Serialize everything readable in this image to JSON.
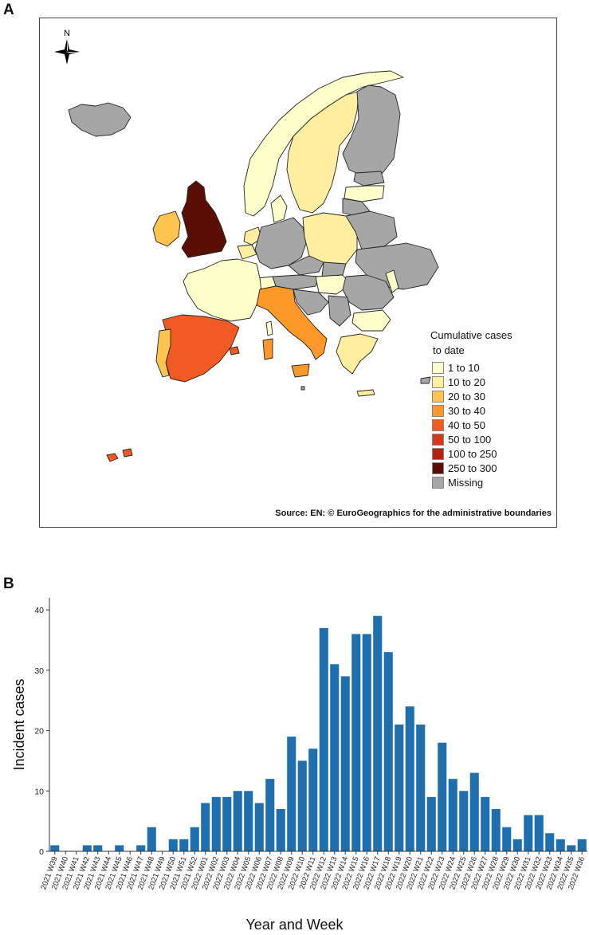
{
  "panel_a_label": "A",
  "panel_b_label": "B",
  "map": {
    "north_label": "N",
    "legend_title_1": "Cumulative cases",
    "legend_title_2": "to date",
    "legend": [
      {
        "label": "1 to 10",
        "color": "#FFFFCC"
      },
      {
        "label": "10 to 20",
        "color": "#FFEDA0"
      },
      {
        "label": "20 to 30",
        "color": "#FEC44F"
      },
      {
        "label": "30 to 40",
        "color": "#FE9929"
      },
      {
        "label": "40 to 50",
        "color": "#F15A22"
      },
      {
        "label": "50 to 100",
        "color": "#E0301E"
      },
      {
        "label": "100 to 250",
        "color": "#B2220E"
      },
      {
        "label": "250 to 300",
        "color": "#5A0F05"
      },
      {
        "label": "Missing",
        "color": "#A6A6A6"
      }
    ],
    "source": "Source: EN: © EuroGeographics for the administrative boundaries"
  },
  "chart_data": {
    "type": "bar",
    "title": "",
    "xlabel": "Year and Week",
    "ylabel": "Incident cases",
    "ylim": [
      0,
      42
    ],
    "yticks": [
      0,
      10,
      20,
      30,
      40
    ],
    "bar_color": "#1F6FAE",
    "categories": [
      "2021 W39",
      "2021 W40",
      "2021 W41",
      "2021 W42",
      "2021 W43",
      "2021 W44",
      "2021 W45",
      "2021 W46",
      "2021 W47",
      "2021 W48",
      "2021 W49",
      "2021 W50",
      "2021 W51",
      "2021 W52",
      "2022 W01",
      "2022 W02",
      "2022 W03",
      "2022 W04",
      "2022 W05",
      "2022 W06",
      "2022 W07",
      "2022 W08",
      "2022 W09",
      "2022 W10",
      "2022 W11",
      "2022 W12",
      "2022 W13",
      "2022 W14",
      "2022 W15",
      "2022 W16",
      "2022 W17",
      "2022 W18",
      "2022 W19",
      "2022 W20",
      "2022 W21",
      "2022 W22",
      "2022 W23",
      "2022 W24",
      "2022 W25",
      "2022 W26",
      "2022 W27",
      "2022 W28",
      "2022 W29",
      "2022 W30",
      "2022 W31",
      "2022 W32",
      "2022 W33",
      "2022 W34",
      "2022 W35",
      "2022 W36"
    ],
    "values": [
      1,
      0,
      0,
      1,
      1,
      0,
      1,
      0,
      1,
      4,
      0,
      2,
      2,
      4,
      8,
      9,
      9,
      10,
      10,
      8,
      12,
      7,
      19,
      15,
      17,
      37,
      31,
      29,
      36,
      36,
      39,
      33,
      21,
      24,
      21,
      9,
      18,
      12,
      10,
      13,
      9,
      7,
      4,
      2,
      6,
      6,
      3,
      2,
      1,
      2
    ]
  }
}
